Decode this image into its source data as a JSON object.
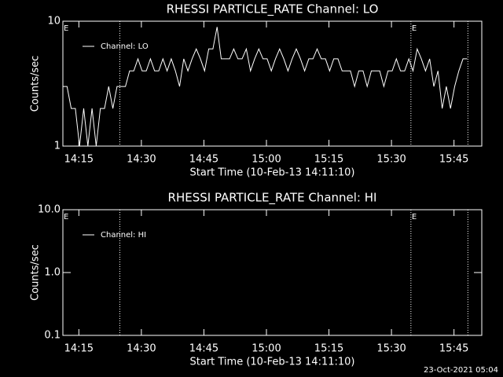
{
  "chart_data": [
    {
      "type": "line",
      "title": "RHESSI PARTICLE_RATE Channel: LO",
      "x_label": "Start Time (10-Feb-13 14:11:10)",
      "y_label": "Counts/sec",
      "y_scale": "log",
      "xlim": [
        0,
        6030
      ],
      "ylim": [
        1,
        10
      ],
      "yticks": [
        1,
        10
      ],
      "xticks": [
        {
          "value": 230,
          "label": "14:15"
        },
        {
          "value": 1130,
          "label": "14:30"
        },
        {
          "value": 2030,
          "label": "14:45"
        },
        {
          "value": 2930,
          "label": "15:00"
        },
        {
          "value": 3830,
          "label": "15:15"
        },
        {
          "value": 4730,
          "label": "15:30"
        },
        {
          "value": 5630,
          "label": "15:45"
        }
      ],
      "legend": "upper left",
      "vlines": [
        820,
        5010,
        5830
      ],
      "annotations": [
        {
          "x": 0,
          "text": "E"
        },
        {
          "x": 5010,
          "text": "E"
        }
      ],
      "x": [
        0,
        60,
        120,
        180,
        240,
        300,
        360,
        420,
        480,
        540,
        600,
        660,
        720,
        780,
        840,
        900,
        960,
        1020,
        1080,
        1140,
        1200,
        1260,
        1320,
        1380,
        1440,
        1500,
        1560,
        1620,
        1680,
        1740,
        1800,
        1860,
        1920,
        1980,
        2040,
        2100,
        2160,
        2220,
        2280,
        2340,
        2400,
        2460,
        2520,
        2580,
        2640,
        2700,
        2760,
        2820,
        2880,
        2940,
        3000,
        3060,
        3120,
        3180,
        3240,
        3300,
        3360,
        3420,
        3480,
        3540,
        3600,
        3660,
        3720,
        3780,
        3840,
        3900,
        3960,
        4020,
        4080,
        4140,
        4200,
        4260,
        4320,
        4380,
        4440,
        4500,
        4560,
        4620,
        4680,
        4740,
        4800,
        4860,
        4920,
        4980,
        5040,
        5100,
        5160,
        5220,
        5280,
        5340,
        5400,
        5460,
        5520,
        5580,
        5640,
        5700,
        5760,
        5820
      ],
      "series": [
        {
          "name": "Channel: LO",
          "color": "#ffffff",
          "values": [
            3,
            3,
            2,
            2,
            1,
            2,
            1,
            2,
            1,
            2,
            2,
            3,
            2,
            3,
            3,
            3,
            4,
            4,
            5,
            4,
            4,
            5,
            4,
            4,
            5,
            4,
            5,
            4,
            3,
            5,
            4,
            5,
            6,
            5,
            4,
            6,
            6,
            9,
            5,
            5,
            5,
            6,
            5,
            5,
            6,
            4,
            5,
            6,
            5,
            5,
            4,
            5,
            6,
            5,
            4,
            5,
            6,
            5,
            4,
            5,
            5,
            6,
            5,
            5,
            4,
            5,
            5,
            4,
            4,
            4,
            3,
            4,
            4,
            3,
            4,
            4,
            4,
            3,
            4,
            4,
            5,
            4,
            4,
            5,
            4,
            6,
            5,
            4,
            5,
            3,
            4,
            2,
            3,
            2,
            3,
            4,
            5,
            5
          ]
        }
      ]
    },
    {
      "type": "line",
      "title": "RHESSI PARTICLE_RATE Channel: HI",
      "x_label": "Start Time (10-Feb-13 14:11:10)",
      "y_label": "Counts/sec",
      "y_scale": "log",
      "xlim": [
        0,
        6030
      ],
      "ylim": [
        0.1,
        10
      ],
      "yticks": [
        0.1,
        {
          "value": 1,
          "label": "1.0"
        },
        {
          "value": 10,
          "label": "10.0"
        }
      ],
      "xticks": [
        {
          "value": 230,
          "label": "14:15"
        },
        {
          "value": 1130,
          "label": "14:30"
        },
        {
          "value": 2030,
          "label": "14:45"
        },
        {
          "value": 2930,
          "label": "15:00"
        },
        {
          "value": 3830,
          "label": "15:15"
        },
        {
          "value": 4730,
          "label": "15:30"
        },
        {
          "value": 5630,
          "label": "15:45"
        }
      ],
      "legend": "upper left",
      "vlines": [
        820,
        5010,
        5830
      ],
      "annotations": [
        {
          "x": 0,
          "text": "E"
        },
        {
          "x": 5010,
          "text": "E"
        }
      ],
      "x": [],
      "series": [
        {
          "name": "Channel: HI",
          "color": "#ffffff",
          "values": []
        }
      ]
    }
  ],
  "footer": "23-Oct-2021 05:04"
}
